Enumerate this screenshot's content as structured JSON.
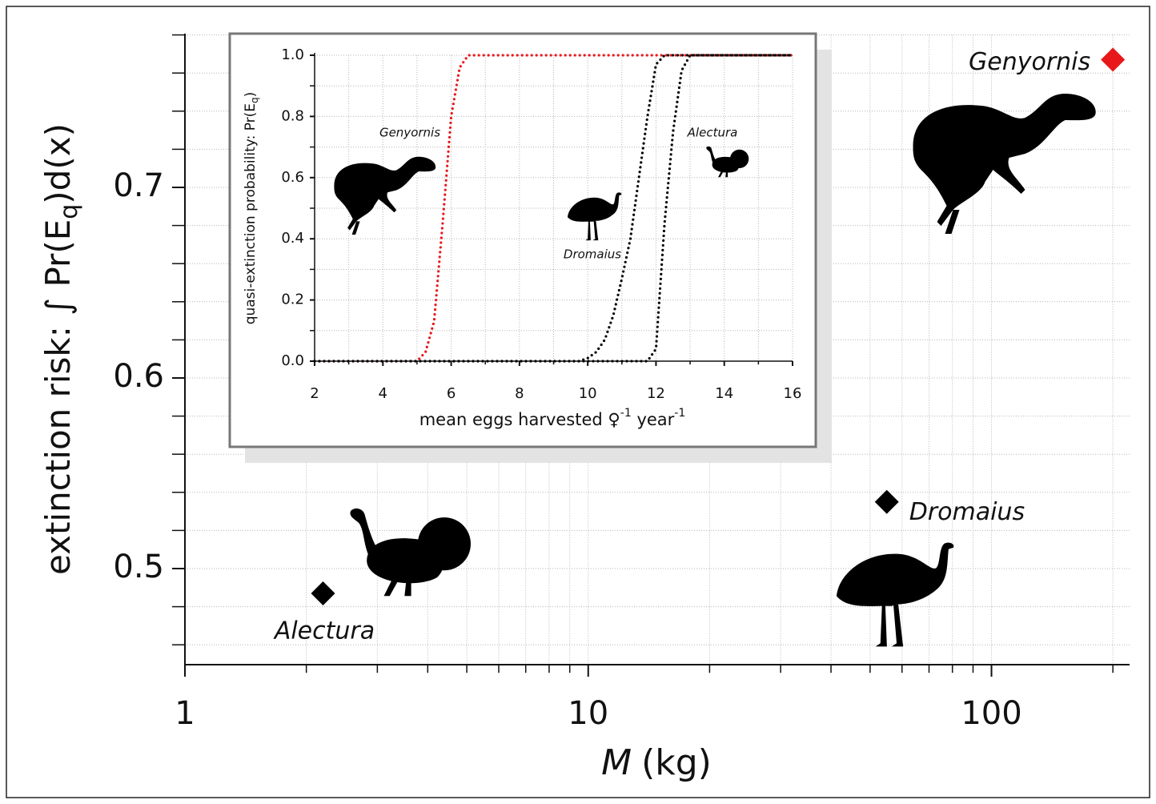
{
  "chart_data": [
    {
      "type": "scatter",
      "xlabel": {
        "var": "M",
        "unit": "(kg)"
      },
      "ylabel": {
        "before": "extinction risk: ∫ Pr(E",
        "sub": "q",
        "after": ")d(x)"
      },
      "log_x": true,
      "grid": true,
      "xlim": [
        1,
        220
      ],
      "xticks": [
        1,
        10,
        100
      ],
      "xminorticks": [
        2,
        3,
        4,
        5,
        6,
        7,
        8,
        9,
        20,
        30,
        40,
        50,
        60,
        70,
        80,
        90,
        200
      ],
      "ylim": [
        0.45,
        0.78
      ],
      "yticks": [
        0.5,
        0.6,
        0.7
      ],
      "yminorticks": [
        0.46,
        0.48,
        0.52,
        0.54,
        0.56,
        0.58,
        0.62,
        0.64,
        0.66,
        0.68,
        0.72,
        0.74,
        0.76,
        0.78
      ],
      "series": [
        {
          "name": "Genyornis",
          "color": "#e8171a",
          "x": [
            200
          ],
          "values": [
            0.767
          ]
        },
        {
          "name": "Dromaius",
          "color": "#000000",
          "x": [
            55
          ],
          "values": [
            0.535
          ]
        },
        {
          "name": "Alectura",
          "color": "#000000",
          "x": [
            2.2
          ],
          "values": [
            0.487
          ]
        }
      ]
    },
    {
      "type": "line",
      "xlabel": {
        "before": "mean eggs harvested ♀",
        "sup1": "-1",
        "mid": " year",
        "sup2": "-1"
      },
      "ylabel": {
        "before": "quasi-extinction probability: Pr(E",
        "sub": "q",
        "after": ")"
      },
      "grid": true,
      "xlim": [
        2,
        16
      ],
      "xticks": [
        2,
        4,
        6,
        8,
        10,
        12,
        14,
        16
      ],
      "xminorticks": [
        3,
        5,
        7,
        9,
        11,
        13,
        15
      ],
      "ylim": [
        0,
        1
      ],
      "yticks": [
        {
          "value": 0,
          "label": "0.0"
        },
        0.2,
        0.4,
        0.6,
        0.8,
        {
          "value": 1,
          "label": "1.0"
        }
      ],
      "yminorticks": [
        0.1,
        0.3,
        0.5,
        0.7,
        0.9
      ],
      "x": [
        2,
        2.25,
        2.5,
        2.75,
        3,
        3.25,
        3.5,
        3.75,
        4,
        4.25,
        4.5,
        4.75,
        5,
        5.25,
        5.5,
        5.75,
        6,
        6.25,
        6.5,
        6.75,
        7,
        7.25,
        7.5,
        7.75,
        8,
        8.25,
        8.5,
        8.75,
        9,
        9.25,
        9.5,
        9.75,
        10,
        10.25,
        10.5,
        10.75,
        11,
        11.25,
        11.5,
        11.75,
        12,
        12.25,
        12.5,
        12.75,
        13,
        13.25,
        13.5,
        13.75,
        14,
        14.25,
        14.5,
        14.75,
        15,
        15.25,
        15.5,
        15.75,
        16
      ],
      "series": [
        {
          "name": "Genyornis",
          "color": "#e8171a",
          "values": [
            0,
            0,
            0,
            0,
            0,
            0,
            0,
            0,
            0,
            0,
            0,
            0,
            0,
            0.03,
            0.13,
            0.45,
            0.8,
            0.96,
            1,
            1,
            1,
            1,
            1,
            1,
            1,
            1,
            1,
            1,
            1,
            1,
            1,
            1,
            1,
            1,
            1,
            1,
            1,
            1,
            1,
            1,
            1,
            1,
            1,
            1,
            1,
            1,
            1,
            1,
            1,
            1,
            1,
            1,
            1,
            1,
            1,
            1,
            1
          ]
        },
        {
          "name": "Dromaius",
          "color": "#000000",
          "values": [
            0,
            0,
            0,
            0,
            0,
            0,
            0,
            0,
            0,
            0,
            0,
            0,
            0,
            0,
            0,
            0,
            0,
            0,
            0,
            0,
            0,
            0,
            0,
            0,
            0,
            0,
            0,
            0,
            0,
            0,
            0,
            0,
            0.01,
            0.03,
            0.07,
            0.15,
            0.27,
            0.4,
            0.6,
            0.8,
            0.97,
            1,
            1,
            1,
            1,
            1,
            1,
            1,
            1,
            1,
            1,
            1,
            1,
            1,
            1,
            1,
            1
          ]
        },
        {
          "name": "Alectura",
          "color": "#000000",
          "values": [
            0,
            0,
            0,
            0,
            0,
            0,
            0,
            0,
            0,
            0,
            0,
            0,
            0,
            0,
            0,
            0,
            0,
            0,
            0,
            0,
            0,
            0,
            0,
            0,
            0,
            0,
            0,
            0,
            0,
            0,
            0,
            0,
            0,
            0,
            0,
            0,
            0,
            0,
            0,
            0,
            0.04,
            0.45,
            0.75,
            0.95,
            1,
            1,
            1,
            1,
            1,
            1,
            1,
            1,
            1,
            1,
            1,
            1,
            1
          ]
        }
      ]
    }
  ]
}
